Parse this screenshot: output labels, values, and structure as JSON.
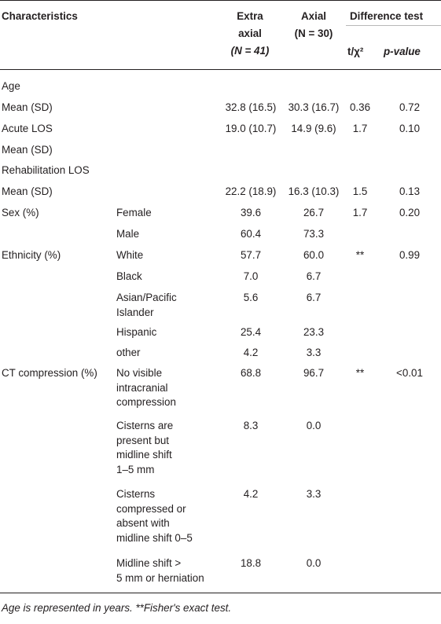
{
  "header": {
    "characteristics": "Characteristics",
    "extra_axial_line1": "Extra",
    "extra_axial_line2": "axial",
    "extra_axial_n": "(N = 41)",
    "axial_line1": "Axial",
    "axial_n": "(N = 30)",
    "difference_test": "Difference test",
    "t_chi": "t/χ²",
    "p_value": "p-value"
  },
  "rows": [
    {
      "char": "Age",
      "sub": "",
      "extra": "",
      "axial": "",
      "t": "",
      "p": ""
    },
    {
      "char": "Mean (SD)",
      "sub": "",
      "extra": "32.8 (16.5)",
      "axial": "30.3 (16.7)",
      "t": "0.36",
      "p": "0.72"
    },
    {
      "char": "Acute LOS",
      "sub": "",
      "extra": "19.0 (10.7)",
      "axial": "14.9 (9.6)",
      "t": "1.7",
      "p": "0.10"
    },
    {
      "char": "Mean (SD)",
      "sub": "",
      "extra": "",
      "axial": "",
      "t": "",
      "p": ""
    },
    {
      "char": "Rehabilitation LOS",
      "sub": "",
      "extra": "",
      "axial": "",
      "t": "",
      "p": ""
    },
    {
      "char": "Mean (SD)",
      "sub": "",
      "extra": "22.2 (18.9)",
      "axial": "16.3 (10.3)",
      "t": "1.5",
      "p": "0.13"
    },
    {
      "char": "Sex (%)",
      "sub": "Female",
      "extra": "39.6",
      "axial": "26.7",
      "t": "1.7",
      "p": "0.20"
    },
    {
      "char": "",
      "sub": "Male",
      "extra": "60.4",
      "axial": "73.3",
      "t": "",
      "p": ""
    },
    {
      "char": "Ethnicity (%)",
      "sub": "White",
      "extra": "57.7",
      "axial": "60.0",
      "t": "**",
      "p": "0.99"
    },
    {
      "char": "",
      "sub": "Black",
      "extra": "7.0",
      "axial": "6.7",
      "t": "",
      "p": ""
    },
    {
      "char": "",
      "sub": "Asian/Pacific|Islander",
      "extra": "5.6",
      "axial": "6.7",
      "t": "",
      "p": ""
    },
    {
      "char": "",
      "sub": "Hispanic",
      "extra": "25.4",
      "axial": "23.3",
      "t": "",
      "p": ""
    },
    {
      "char": "",
      "sub": "other",
      "extra": "4.2",
      "axial": "3.3",
      "t": "",
      "p": ""
    },
    {
      "char": "CT compression (%)",
      "sub": "No visible|intracranial|compression",
      "extra": "68.8",
      "axial": "96.7",
      "t": "**",
      "p": "<0.01"
    },
    {
      "char": "",
      "sub": "Cisterns are|present but|midline shift|1–5 mm",
      "extra": "8.3",
      "axial": "0.0",
      "t": "",
      "p": ""
    },
    {
      "char": "",
      "sub": "Cisterns|compressed or|absent with|midline shift 0–5",
      "extra": "4.2",
      "axial": "3.3",
      "t": "",
      "p": ""
    },
    {
      "char": "",
      "sub": "Midline shift >|5 mm or herniation",
      "extra": "18.8",
      "axial": "0.0",
      "t": "",
      "p": ""
    }
  ],
  "footnote": "Age is represented in years. **Fisher's exact test."
}
